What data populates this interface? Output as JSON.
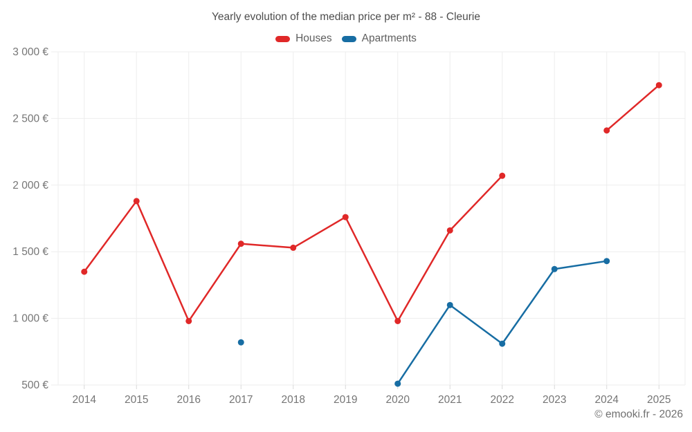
{
  "title": "Yearly evolution of the median price per m² - 88 - Cleurie",
  "footer": "© emooki.fr - 2026",
  "legend": {
    "items": [
      {
        "label": "Houses",
        "color": "#e02828"
      },
      {
        "label": "Apartments",
        "color": "#176da3"
      }
    ]
  },
  "chart_data": {
    "type": "line",
    "title": "Yearly evolution of the median price per m² - 88 - Cleurie",
    "categories": [
      "2014",
      "2015",
      "2016",
      "2017",
      "2018",
      "2019",
      "2020",
      "2021",
      "2022",
      "2023",
      "2024",
      "2025"
    ],
    "series": [
      {
        "name": "Houses",
        "color": "#e02828",
        "values": [
          1350,
          1880,
          980,
          1560,
          1530,
          1760,
          980,
          1660,
          2070,
          null,
          2410,
          2750
        ]
      },
      {
        "name": "Apartments",
        "color": "#176da3",
        "values": [
          null,
          null,
          null,
          820,
          null,
          null,
          510,
          1100,
          810,
          1370,
          1430,
          null
        ]
      }
    ],
    "ylim": [
      500,
      3000
    ],
    "ytick_step": 500,
    "ytick_labels": [
      "500 €",
      "1 000 €",
      "1 500 €",
      "2 000 €",
      "2 500 €",
      "3 000 €"
    ],
    "xlabel": "",
    "ylabel": "",
    "grid": true,
    "legend_position": "top",
    "colors": {
      "grid_line": "#ededed",
      "axis_tick": "#d9d9d9",
      "tick_label": "#757575"
    }
  }
}
